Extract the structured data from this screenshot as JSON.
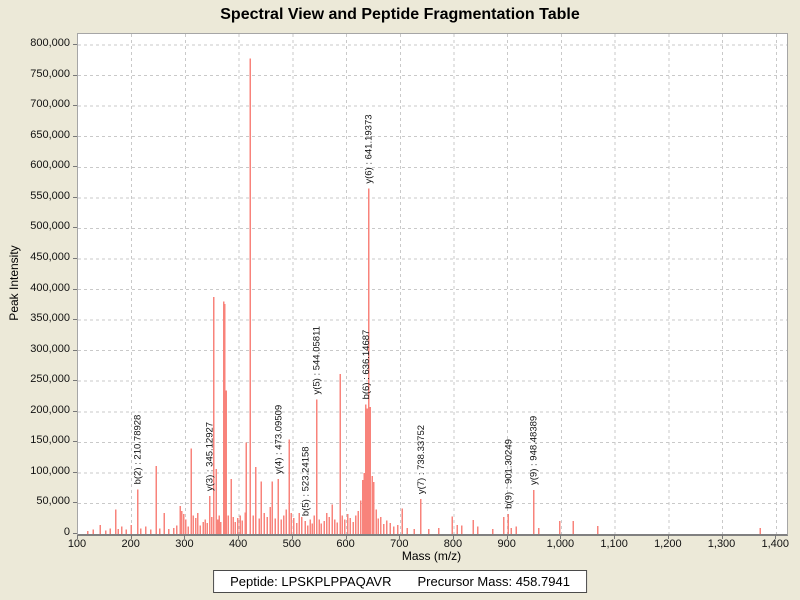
{
  "title": "Spectral View and Peptide Fragmentation Table",
  "footer": {
    "peptide_label": "Peptide: LPSKPLPPAQAVR",
    "precursor_label": "Precursor Mass: 458.7941"
  },
  "chart_data": {
    "type": "bar",
    "title": "Spectral View and Peptide Fragmentation Table",
    "xlabel": "Mass (m/z)",
    "ylabel": "Peak Intensity",
    "xlim": [
      100,
      1420
    ],
    "ylim": [
      0,
      818000
    ],
    "x_ticks": [
      100,
      200,
      300,
      400,
      500,
      600,
      700,
      800,
      900,
      1000,
      1100,
      1200,
      1300,
      1400
    ],
    "y_ticks": [
      0,
      50000,
      100000,
      150000,
      200000,
      250000,
      300000,
      350000,
      400000,
      450000,
      500000,
      550000,
      600000,
      650000,
      700000,
      750000,
      800000
    ],
    "grid": true,
    "legend": "none",
    "colors": {
      "peak": "#f8837b",
      "background": "#ece9d8",
      "plot_background": "#ffffff",
      "gridline": "#c9c9c9",
      "axis_border": "#a6a6a6",
      "label_text": "#111111"
    },
    "peaks": [
      [
        118,
        5000
      ],
      [
        128,
        7000
      ],
      [
        141,
        15000
      ],
      [
        152,
        6000
      ],
      [
        160,
        9000
      ],
      [
        170,
        40000
      ],
      [
        175,
        8000
      ],
      [
        181,
        12000
      ],
      [
        190,
        7000
      ],
      [
        199,
        15000
      ],
      [
        210.78928,
        73000
      ],
      [
        217,
        9000
      ],
      [
        226,
        12000
      ],
      [
        235,
        7000
      ],
      [
        246,
        111000
      ],
      [
        252,
        9000
      ],
      [
        261,
        34000
      ],
      [
        269,
        8000
      ],
      [
        278,
        10000
      ],
      [
        284,
        14000
      ],
      [
        290,
        46000
      ],
      [
        293,
        38000
      ],
      [
        297,
        33000
      ],
      [
        301,
        24000
      ],
      [
        305,
        12000
      ],
      [
        311,
        140000
      ],
      [
        315,
        30000
      ],
      [
        319,
        26000
      ],
      [
        323,
        34000
      ],
      [
        328,
        14000
      ],
      [
        333,
        20000
      ],
      [
        337,
        24000
      ],
      [
        341,
        18000
      ],
      [
        345.12927,
        62000
      ],
      [
        349,
        28000
      ],
      [
        353,
        388000
      ],
      [
        357,
        106000
      ],
      [
        360,
        24000
      ],
      [
        363,
        30000
      ],
      [
        366,
        20000
      ],
      [
        371,
        380000
      ],
      [
        373.5,
        376000
      ],
      [
        376,
        235000
      ],
      [
        380,
        30000
      ],
      [
        385,
        90000
      ],
      [
        389,
        28000
      ],
      [
        393,
        20000
      ],
      [
        397,
        26000
      ],
      [
        402,
        30000
      ],
      [
        406,
        22000
      ],
      [
        411,
        35000
      ],
      [
        413,
        150000
      ],
      [
        421,
        778000
      ],
      [
        426,
        30000
      ],
      [
        431,
        110000
      ],
      [
        437,
        25000
      ],
      [
        441,
        86000
      ],
      [
        447,
        34000
      ],
      [
        452,
        28000
      ],
      [
        458,
        44000
      ],
      [
        462,
        86000
      ],
      [
        467,
        25000
      ],
      [
        473.09509,
        90000
      ],
      [
        478,
        24000
      ],
      [
        483,
        30000
      ],
      [
        488,
        40000
      ],
      [
        493,
        155000
      ],
      [
        497,
        34000
      ],
      [
        502,
        26000
      ],
      [
        507,
        18000
      ],
      [
        512,
        34000
      ],
      [
        517,
        28000
      ],
      [
        523.24158,
        21000
      ],
      [
        528,
        14000
      ],
      [
        532,
        24000
      ],
      [
        536,
        17000
      ],
      [
        540,
        30000
      ],
      [
        544.05811,
        220000
      ],
      [
        549,
        24000
      ],
      [
        553,
        17000
      ],
      [
        558,
        21000
      ],
      [
        563,
        34000
      ],
      [
        568,
        28000
      ],
      [
        573,
        48000
      ],
      [
        578,
        24000
      ],
      [
        583,
        19000
      ],
      [
        588,
        262000
      ],
      [
        592,
        30000
      ],
      [
        597,
        24000
      ],
      [
        602,
        33000
      ],
      [
        607,
        26000
      ],
      [
        612,
        20000
      ],
      [
        617,
        30000
      ],
      [
        622,
        38000
      ],
      [
        626,
        55000
      ],
      [
        630,
        88000
      ],
      [
        633,
        100000
      ],
      [
        636.14687,
        212000
      ],
      [
        638.5,
        205000
      ],
      [
        641.19373,
        565000
      ],
      [
        644,
        208000
      ],
      [
        647.5,
        95000
      ],
      [
        651,
        85000
      ],
      [
        655,
        40000
      ],
      [
        659,
        25000
      ],
      [
        664,
        28000
      ],
      [
        669,
        16000
      ],
      [
        675,
        22000
      ],
      [
        681,
        18000
      ],
      [
        688,
        12000
      ],
      [
        695,
        15000
      ],
      [
        704,
        42000
      ],
      [
        713,
        10000
      ],
      [
        726,
        8000
      ],
      [
        738.33752,
        57000
      ],
      [
        753,
        8000
      ],
      [
        772,
        10000
      ],
      [
        797,
        29000
      ],
      [
        806,
        15000
      ],
      [
        814,
        14000
      ],
      [
        836,
        23000
      ],
      [
        844,
        12000
      ],
      [
        872,
        8000
      ],
      [
        893,
        28000
      ],
      [
        901.30249,
        33000
      ],
      [
        907,
        10000
      ],
      [
        916,
        12000
      ],
      [
        948.48389,
        72000
      ],
      [
        958,
        10000
      ],
      [
        997,
        21000
      ],
      [
        1022,
        21000
      ],
      [
        1068,
        13000
      ],
      [
        1370,
        10000
      ]
    ],
    "labeled_peaks": [
      {
        "label": "b(2) : 210.78928",
        "mz": 210.78928,
        "intensity": 73000
      },
      {
        "label": "y(3) : 345.12927",
        "mz": 345.12927,
        "intensity": 62000
      },
      {
        "label": "y(4) : 473.09509",
        "mz": 473.09509,
        "intensity": 90000
      },
      {
        "label": "b(5) : 523.24158",
        "mz": 523.24158,
        "intensity": 21000
      },
      {
        "label": "y(5) : 544.05811",
        "mz": 544.05811,
        "intensity": 220000
      },
      {
        "label": "b(6) : 636.14687",
        "mz": 636.14687,
        "intensity": 212000
      },
      {
        "label": "y(6) : 641.19373",
        "mz": 641.19373,
        "intensity": 565000
      },
      {
        "label": "y(7) : 738.33752",
        "mz": 738.33752,
        "intensity": 57000
      },
      {
        "label": "b(9) : 901.30249",
        "mz": 901.30249,
        "intensity": 33000
      },
      {
        "label": "y(9) : 948.48389",
        "mz": 948.48389,
        "intensity": 72000
      }
    ]
  }
}
